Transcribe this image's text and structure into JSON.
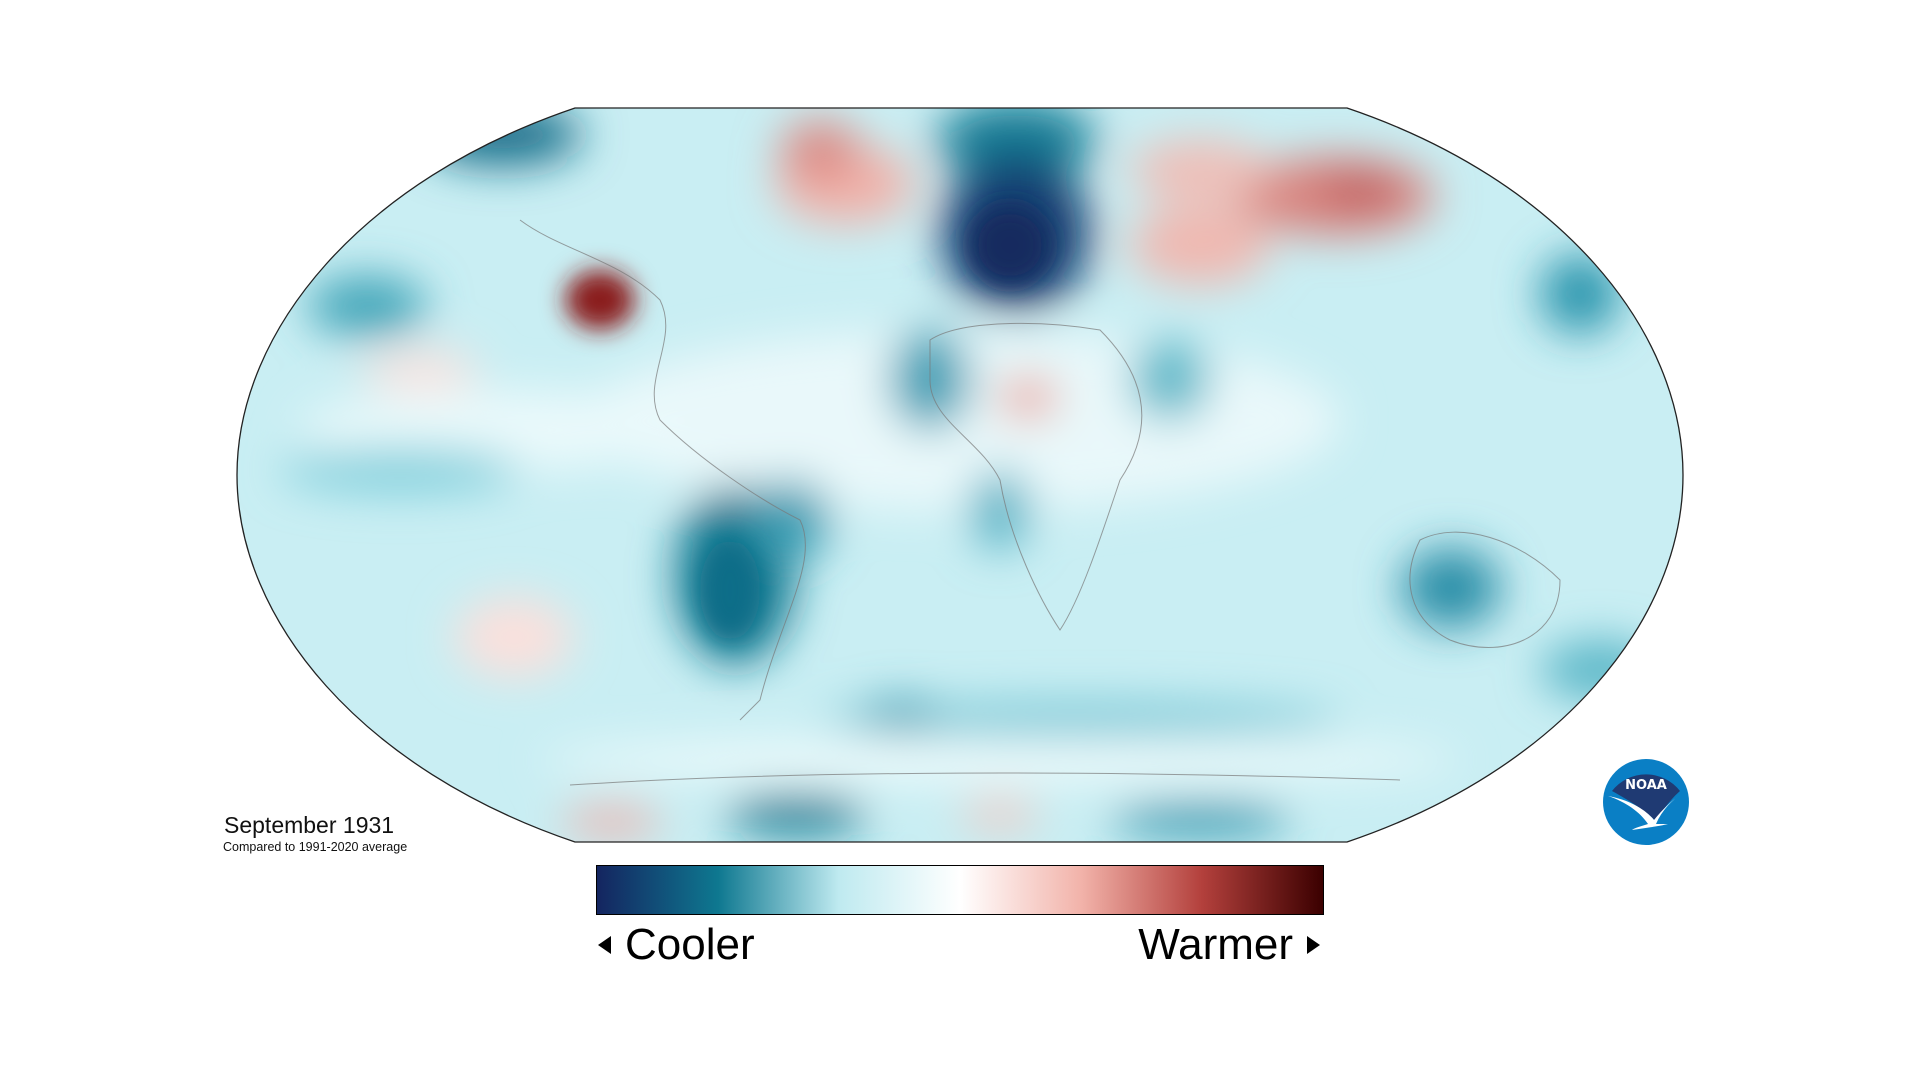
{
  "map": {
    "title": "September 1931",
    "subtitle": "Compared to 1991-2020 average",
    "projection": "Robinson",
    "type": "global temperature anomaly map"
  },
  "legend": {
    "cooler_label": "Cooler",
    "warmer_label": "Warmer",
    "colors": [
      "#142560",
      "#0e7890",
      "#bfeaf0",
      "#ffffff",
      "#f2b3aa",
      "#b3403c",
      "#3b0000"
    ]
  },
  "logo": {
    "text": "NOAA",
    "colors": {
      "dark": "#1f3a73",
      "light": "#0a7fc5"
    }
  }
}
